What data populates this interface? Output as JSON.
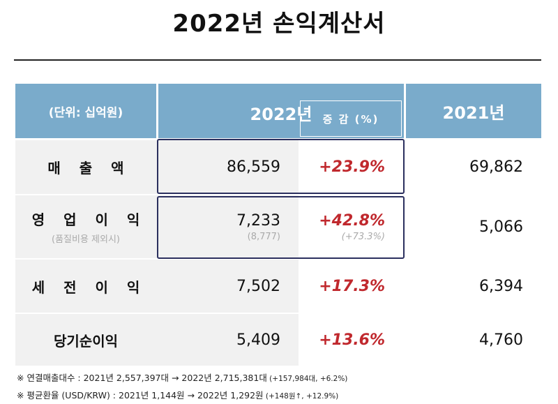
{
  "title": "2022년 손익계산서",
  "header": {
    "unit": "(단위: 십억원)",
    "year_current": "2022년",
    "change": "증 감 (%)",
    "year_prev": "2021년"
  },
  "rows": [
    {
      "label": "매 출 액",
      "sublabel": "",
      "value_2022": "86,559",
      "value_2022_sub": "",
      "change": "+23.9%",
      "change_sub": "",
      "value_2021": "69,862"
    },
    {
      "label": "영 업 이 익",
      "sublabel": "(품질비용 제외시)",
      "value_2022": "7,233",
      "value_2022_sub": "(8,777)",
      "change": "+42.8%",
      "change_sub": "(+73.3%)",
      "value_2021": "5,066"
    },
    {
      "label": "세 전 이 익",
      "sublabel": "",
      "value_2022": "7,502",
      "value_2022_sub": "",
      "change": "+17.3%",
      "change_sub": "",
      "value_2021": "6,394"
    },
    {
      "label": "당기순이익",
      "sublabel": "",
      "value_2022": "5,409",
      "value_2022_sub": "",
      "change": "+13.6%",
      "change_sub": "",
      "value_2021": "4,760"
    }
  ],
  "notes": [
    {
      "text": "※  연결매출대수 : 2021년 2,557,397대  →  2022년 2,715,381대",
      "detail": " (+157,984대, +6.2%)"
    },
    {
      "text": "※  평균환율 (USD/KRW) : 2021년 1,144원  →  2022년 1,292원",
      "detail": " (+148원↑, +12.9%)"
    }
  ],
  "colors": {
    "header_bg": "#7aabcb",
    "highlight_border": "#2b2f5e",
    "positive_change": "#c0282d"
  }
}
